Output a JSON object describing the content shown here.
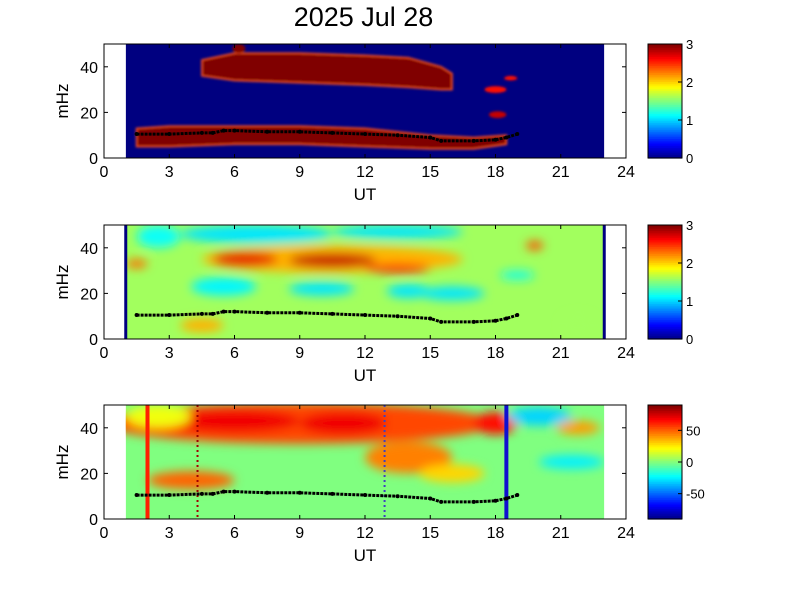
{
  "title": "2025 Jul 28",
  "chart_data": [
    {
      "type": "heatmap",
      "panel": "top",
      "xlabel": "UT",
      "ylabel": "mHz",
      "xlim": [
        0,
        24
      ],
      "ylim": [
        0,
        50
      ],
      "xticks": [
        "0",
        "3",
        "6",
        "9",
        "12",
        "15",
        "18",
        "21",
        "24"
      ],
      "yticks": [
        "0",
        "20",
        "40"
      ],
      "data_x_range": [
        1,
        23
      ],
      "colorbar": {
        "range": [
          0,
          3
        ],
        "ticks": [
          "0",
          "1",
          "2",
          "3"
        ],
        "colormap": "jet"
      },
      "background_level": 0,
      "regions": [
        {
          "level": 3,
          "shape": "band",
          "x": [
            1.5,
            3,
            6,
            9,
            12,
            15,
            17,
            18.5
          ],
          "y_low": [
            5,
            5,
            6,
            6,
            5,
            4,
            4,
            6
          ],
          "y_high": [
            13,
            14,
            14,
            14,
            13,
            10,
            9,
            10
          ]
        },
        {
          "level": 3,
          "shape": "band",
          "x": [
            4.5,
            6,
            9,
            12,
            14,
            15.5,
            16
          ],
          "y_low": [
            36,
            34,
            33,
            32,
            31,
            30,
            30
          ],
          "y_high": [
            43,
            46,
            46,
            45,
            44,
            40,
            37
          ]
        },
        {
          "level": 3,
          "shape": "blob",
          "x": 6.2,
          "y": 48,
          "rx": 0.3,
          "ry": 2
        },
        {
          "level": 2.6,
          "shape": "blob",
          "x": 18.0,
          "y": 30,
          "rx": 0.5,
          "ry": 1.5
        },
        {
          "level": 2.6,
          "shape": "blob",
          "x": 18.7,
          "y": 35,
          "rx": 0.3,
          "ry": 1
        },
        {
          "level": 2.8,
          "shape": "blob",
          "x": 18.1,
          "y": 19,
          "rx": 0.4,
          "ry": 1.5
        }
      ],
      "series": [
        {
          "x": [
            1.5,
            3,
            4.5,
            5,
            5.5,
            6,
            7.5,
            9,
            10.5,
            12,
            13.5,
            15,
            15.5,
            17,
            18,
            18.5,
            19
          ],
          "y": [
            10.5,
            10.5,
            11,
            11,
            12,
            12,
            11.5,
            11.5,
            11,
            10.5,
            10,
            9,
            7.5,
            7.5,
            8,
            9,
            10.5
          ]
        }
      ]
    },
    {
      "type": "heatmap",
      "panel": "middle",
      "xlabel": "UT",
      "ylabel": "mHz",
      "xlim": [
        0,
        24
      ],
      "ylim": [
        0,
        50
      ],
      "xticks": [
        "0",
        "3",
        "6",
        "9",
        "12",
        "15",
        "18",
        "21",
        "24"
      ],
      "yticks": [
        "0",
        "20",
        "40"
      ],
      "data_x_range": [
        1,
        23
      ],
      "colorbar": {
        "range": [
          0,
          3
        ],
        "ticks": [
          "0",
          "1",
          "2",
          "3"
        ],
        "colormap": "jet"
      },
      "background_level": 1.6,
      "regions": [
        {
          "level": 1.05,
          "shape": "blob",
          "x": 7,
          "y": 46,
          "rx": 3.5,
          "ry": 4
        },
        {
          "level": 1.05,
          "shape": "blob",
          "x": 13.5,
          "y": 47,
          "rx": 3,
          "ry": 3
        },
        {
          "level": 1.15,
          "shape": "blob",
          "x": 2.5,
          "y": 45,
          "rx": 1,
          "ry": 5
        },
        {
          "level": 1.1,
          "shape": "blob",
          "x": 5.5,
          "y": 23,
          "rx": 1.5,
          "ry": 4
        },
        {
          "level": 1.05,
          "shape": "blob",
          "x": 10,
          "y": 22,
          "rx": 1.5,
          "ry": 3
        },
        {
          "level": 1.05,
          "shape": "blob",
          "x": 14,
          "y": 21,
          "rx": 1,
          "ry": 3
        },
        {
          "level": 1.05,
          "shape": "blob",
          "x": 16,
          "y": 20,
          "rx": 1.5,
          "ry": 3
        },
        {
          "level": 1.2,
          "shape": "blob",
          "x": 19,
          "y": 28,
          "rx": 0.8,
          "ry": 2
        },
        {
          "level": 1.6,
          "shape": "blob",
          "x": 21.8,
          "y": 6,
          "rx": 0.8,
          "ry": 5
        },
        {
          "level": 2.1,
          "shape": "blob",
          "x": 10.5,
          "y": 35,
          "rx": 6,
          "ry": 6
        },
        {
          "level": 2.3,
          "shape": "blob",
          "x": 1.5,
          "y": 33,
          "rx": 0.5,
          "ry": 2
        },
        {
          "level": 2.7,
          "shape": "blob",
          "x": 6.5,
          "y": 35,
          "rx": 1.5,
          "ry": 3
        },
        {
          "level": 2.8,
          "shape": "blob",
          "x": 10.5,
          "y": 34.5,
          "rx": 2,
          "ry": 3
        },
        {
          "level": 2.6,
          "shape": "blob",
          "x": 13.5,
          "y": 31,
          "rx": 1.5,
          "ry": 2
        },
        {
          "level": 2.4,
          "shape": "blob",
          "x": 19.8,
          "y": 41,
          "rx": 0.4,
          "ry": 2
        },
        {
          "level": 2.1,
          "shape": "blob",
          "x": 4.5,
          "y": 6,
          "rx": 1,
          "ry": 3
        }
      ],
      "edge_bars": [
        1,
        23
      ],
      "series": [
        {
          "x": [
            1.5,
            3,
            4.5,
            5,
            5.5,
            6,
            7.5,
            9,
            10.5,
            12,
            13.5,
            15,
            15.5,
            17,
            18,
            18.5,
            19
          ],
          "y": [
            10.5,
            10.5,
            11,
            11,
            12,
            12,
            11.5,
            11.5,
            11,
            10.5,
            10,
            9,
            7.5,
            7.5,
            8,
            9,
            10.5
          ]
        }
      ]
    },
    {
      "type": "heatmap",
      "panel": "bottom",
      "xlabel": "UT",
      "ylabel": "mHz",
      "xlim": [
        0,
        24
      ],
      "ylim": [
        0,
        50
      ],
      "xticks": [
        "0",
        "3",
        "6",
        "9",
        "12",
        "15",
        "18",
        "21",
        "24"
      ],
      "yticks": [
        "0",
        "20",
        "40"
      ],
      "data_x_range": [
        1,
        23
      ],
      "colorbar": {
        "range": [
          -90,
          90
        ],
        "ticks": [
          "-50",
          "0",
          "50"
        ],
        "colormap": "jet"
      },
      "background_level": 0,
      "regions": [
        {
          "level": 55,
          "shape": "blob",
          "x": 9,
          "y": 42,
          "rx": 9,
          "ry": 9
        },
        {
          "level": 50,
          "shape": "blob",
          "x": 4,
          "y": 17,
          "rx": 2,
          "ry": 4
        },
        {
          "level": 45,
          "shape": "blob",
          "x": 14,
          "y": 27,
          "rx": 2,
          "ry": 7
        },
        {
          "level": 70,
          "shape": "blob",
          "x": 6,
          "y": 43,
          "rx": 3,
          "ry": 5
        },
        {
          "level": 70,
          "shape": "blob",
          "x": 11,
          "y": 42,
          "rx": 2,
          "ry": 5
        },
        {
          "level": 65,
          "shape": "blob",
          "x": 18,
          "y": 42,
          "rx": 1,
          "ry": 5
        },
        {
          "level": 30,
          "shape": "blob",
          "x": 16,
          "y": 20,
          "rx": 1.5,
          "ry": 4
        },
        {
          "level": -30,
          "shape": "blob",
          "x": 20,
          "y": 45,
          "rx": 1.5,
          "ry": 4
        },
        {
          "level": -25,
          "shape": "blob",
          "x": 21.5,
          "y": 25,
          "rx": 1.5,
          "ry": 3
        },
        {
          "level": 40,
          "shape": "blob",
          "x": 21.8,
          "y": 40,
          "rx": 1,
          "ry": 3
        },
        {
          "level": 20,
          "shape": "blob",
          "x": 2.5,
          "y": 45,
          "rx": 1.5,
          "ry": 5
        }
      ],
      "vlines": [
        {
          "x": 2.0,
          "color": "#ff2000",
          "style": "solid"
        },
        {
          "x": 4.3,
          "color": "#a00000",
          "style": "dotted"
        },
        {
          "x": 12.9,
          "color": "#4040c0",
          "style": "dotted"
        },
        {
          "x": 18.5,
          "color": "#1010d0",
          "style": "solid"
        }
      ],
      "series": [
        {
          "x": [
            1.5,
            3,
            4.5,
            5,
            5.5,
            6,
            7.5,
            9,
            10.5,
            12,
            13.5,
            15,
            15.5,
            17,
            18,
            18.5,
            19
          ],
          "y": [
            10.5,
            10.5,
            11,
            11,
            12,
            12,
            11.5,
            11.5,
            11,
            10.5,
            10,
            9,
            7.5,
            7.5,
            8,
            9,
            10.5
          ]
        }
      ]
    }
  ]
}
